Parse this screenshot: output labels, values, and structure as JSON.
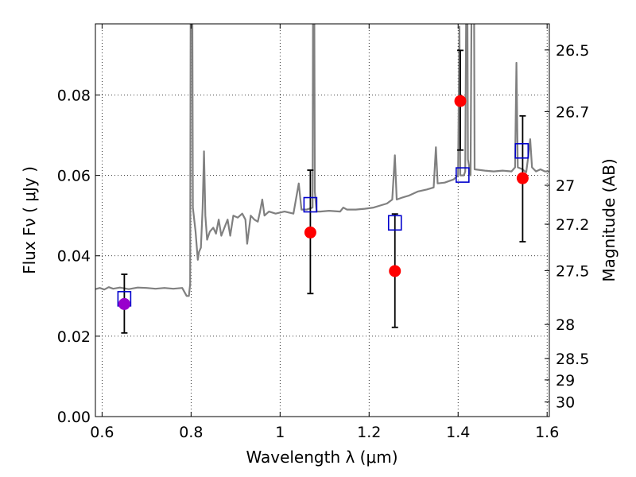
{
  "chart_data": {
    "type": "scatter",
    "xlabel": "Wavelength  λ (μm)",
    "ylabel": "Flux  Fν  ( μJy )",
    "y2label": "Magnitude (AB)",
    "xlim": [
      0.585,
      1.605
    ],
    "ylim": [
      0.0,
      0.0977
    ],
    "grid": true,
    "x_ticks": [
      0.6,
      0.8,
      1.0,
      1.2,
      1.4,
      1.6
    ],
    "x_tick_labels": [
      "0.6",
      "0.8",
      "1",
      "1.2",
      "1.4",
      "1.6"
    ],
    "y_ticks": [
      0.0,
      0.02,
      0.04,
      0.06,
      0.08
    ],
    "y_tick_labels": [
      "0.00",
      "0.02",
      "0.04",
      "0.06",
      "0.08"
    ],
    "mag_ticks": [
      26.5,
      26.7,
      27,
      27.2,
      27.5,
      28,
      28.5,
      29,
      30
    ],
    "mag_tick_labels": [
      "26.5",
      "26.7",
      "27",
      "27.2",
      "27.5",
      "28",
      "28.5",
      "29",
      "30"
    ],
    "colors": {
      "spectrum": "#808080",
      "observed": "#ff0000",
      "model": "#0000cc",
      "first_point": "#9900cc",
      "errorbar": "#000000"
    },
    "observed": [
      {
        "x": 0.65,
        "y": 0.028,
        "yerr_low": 0.0072,
        "yerr_high": 0.0074
      },
      {
        "x": 1.068,
        "y": 0.0458,
        "yerr_low": 0.0152,
        "yerr_high": 0.0155
      },
      {
        "x": 1.258,
        "y": 0.0362,
        "yerr_low": 0.014,
        "yerr_high": 0.0142
      },
      {
        "x": 1.405,
        "y": 0.0785,
        "yerr_low": 0.0122,
        "yerr_high": 0.0126
      },
      {
        "x": 1.545,
        "y": 0.0593,
        "yerr_low": 0.0158,
        "yerr_high": 0.0155
      }
    ],
    "model_bands": [
      {
        "x": 0.65,
        "y": 0.0293
      },
      {
        "x": 1.068,
        "y": 0.0527
      },
      {
        "x": 1.258,
        "y": 0.0482
      },
      {
        "x": 1.41,
        "y": 0.0601
      },
      {
        "x": 1.543,
        "y": 0.0661
      }
    ],
    "spectrum": [
      [
        0.585,
        0.0317
      ],
      [
        0.595,
        0.032
      ],
      [
        0.605,
        0.0316
      ],
      [
        0.615,
        0.0322
      ],
      [
        0.625,
        0.0318
      ],
      [
        0.64,
        0.0321
      ],
      [
        0.66,
        0.0317
      ],
      [
        0.68,
        0.0321
      ],
      [
        0.7,
        0.032
      ],
      [
        0.72,
        0.0318
      ],
      [
        0.74,
        0.032
      ],
      [
        0.76,
        0.0318
      ],
      [
        0.78,
        0.032
      ],
      [
        0.79,
        0.03
      ],
      [
        0.795,
        0.03
      ],
      [
        0.798,
        0.033
      ],
      [
        0.799,
        0.098
      ],
      [
        0.803,
        0.098
      ],
      [
        0.804,
        0.052
      ],
      [
        0.81,
        0.046
      ],
      [
        0.815,
        0.039
      ],
      [
        0.818,
        0.041
      ],
      [
        0.822,
        0.042
      ],
      [
        0.826,
        0.052
      ],
      [
        0.829,
        0.066
      ],
      [
        0.832,
        0.05
      ],
      [
        0.836,
        0.044
      ],
      [
        0.842,
        0.046
      ],
      [
        0.85,
        0.047
      ],
      [
        0.856,
        0.0455
      ],
      [
        0.862,
        0.049
      ],
      [
        0.868,
        0.045
      ],
      [
        0.875,
        0.047
      ],
      [
        0.882,
        0.049
      ],
      [
        0.888,
        0.045
      ],
      [
        0.895,
        0.05
      ],
      [
        0.905,
        0.0495
      ],
      [
        0.915,
        0.0505
      ],
      [
        0.922,
        0.049
      ],
      [
        0.926,
        0.043
      ],
      [
        0.934,
        0.05
      ],
      [
        0.942,
        0.049
      ],
      [
        0.95,
        0.0485
      ],
      [
        0.955,
        0.051
      ],
      [
        0.96,
        0.054
      ],
      [
        0.965,
        0.05
      ],
      [
        0.975,
        0.051
      ],
      [
        0.99,
        0.0505
      ],
      [
        1.01,
        0.051
      ],
      [
        1.03,
        0.0505
      ],
      [
        1.042,
        0.058
      ],
      [
        1.048,
        0.0515
      ],
      [
        1.06,
        0.0515
      ],
      [
        1.073,
        0.052
      ],
      [
        1.074,
        0.098
      ],
      [
        1.077,
        0.098
      ],
      [
        1.078,
        0.056
      ],
      [
        1.082,
        0.051
      ],
      [
        1.09,
        0.051
      ],
      [
        1.11,
        0.0512
      ],
      [
        1.135,
        0.051
      ],
      [
        1.142,
        0.052
      ],
      [
        1.15,
        0.0515
      ],
      [
        1.17,
        0.0515
      ],
      [
        1.19,
        0.0517
      ],
      [
        1.21,
        0.052
      ],
      [
        1.225,
        0.0525
      ],
      [
        1.24,
        0.053
      ],
      [
        1.252,
        0.054
      ],
      [
        1.258,
        0.065
      ],
      [
        1.262,
        0.054
      ],
      [
        1.275,
        0.0545
      ],
      [
        1.29,
        0.055
      ],
      [
        1.31,
        0.056
      ],
      [
        1.33,
        0.0565
      ],
      [
        1.345,
        0.057
      ],
      [
        1.35,
        0.067
      ],
      [
        1.354,
        0.058
      ],
      [
        1.37,
        0.0582
      ],
      [
        1.39,
        0.059
      ],
      [
        1.4,
        0.06
      ],
      [
        1.403,
        0.097
      ],
      [
        1.405,
        0.06
      ],
      [
        1.413,
        0.06
      ],
      [
        1.416,
        0.061
      ],
      [
        1.418,
        0.098
      ],
      [
        1.421,
        0.098
      ],
      [
        1.422,
        0.064
      ],
      [
        1.428,
        0.06
      ],
      [
        1.43,
        0.098
      ],
      [
        1.436,
        0.098
      ],
      [
        1.437,
        0.0615
      ],
      [
        1.46,
        0.0612
      ],
      [
        1.48,
        0.061
      ],
      [
        1.5,
        0.0612
      ],
      [
        1.52,
        0.061
      ],
      [
        1.528,
        0.062
      ],
      [
        1.531,
        0.088
      ],
      [
        1.534,
        0.062
      ],
      [
        1.545,
        0.0615
      ],
      [
        1.55,
        0.061
      ],
      [
        1.553,
        0.0608
      ],
      [
        1.558,
        0.065
      ],
      [
        1.562,
        0.069
      ],
      [
        1.566,
        0.062
      ],
      [
        1.575,
        0.061
      ],
      [
        1.585,
        0.0615
      ],
      [
        1.595,
        0.061
      ],
      [
        1.605,
        0.061
      ]
    ]
  }
}
